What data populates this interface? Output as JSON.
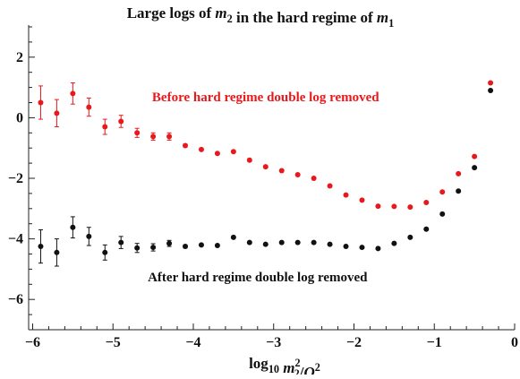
{
  "chart_data": {
    "type": "scatter",
    "title_parts": [
      {
        "text": "Large logs of ",
        "style": "bold"
      },
      {
        "text": "m",
        "style": "bolditalic"
      },
      {
        "text": "2",
        "style": "sub"
      },
      {
        "text": " in the hard regime of ",
        "style": "bold"
      },
      {
        "text": "m",
        "style": "bolditalic"
      },
      {
        "text": "1",
        "style": "sub"
      }
    ],
    "xlabel_parts": [
      {
        "text": "log",
        "style": "bold"
      },
      {
        "text": "10",
        "style": "sub"
      },
      {
        "text": " ",
        "style": "bold"
      },
      {
        "text": "m",
        "style": "bolditalic"
      },
      {
        "text": "2",
        "style": "supsub",
        "sup": "2",
        "sub": "2"
      },
      {
        "text": "/",
        "style": "bold"
      },
      {
        "text": "Q",
        "style": "bolditalic"
      },
      {
        "text": "2",
        "style": "sup"
      }
    ],
    "xlim": [
      -6.05,
      0.0
    ],
    "ylim": [
      -7.0,
      3.0
    ],
    "x_ticks": [
      -6,
      -5,
      -4,
      -3,
      -2,
      -1,
      0
    ],
    "x_tick_labels": [
      "−6",
      "−5",
      "−4",
      "−3",
      "−2",
      "−1",
      "0"
    ],
    "y_ticks": [
      2,
      0,
      -2,
      -4,
      -6
    ],
    "y_tick_labels": [
      "2",
      "0",
      "−2",
      "−4",
      "−6"
    ],
    "series": [
      {
        "name": "Before hard regime double log removed",
        "color": "#e8191c",
        "points": [
          {
            "x": -5.9,
            "y": 0.5,
            "err": 0.55
          },
          {
            "x": -5.7,
            "y": 0.15,
            "err": 0.45
          },
          {
            "x": -5.5,
            "y": 0.8,
            "err": 0.35
          },
          {
            "x": -5.3,
            "y": 0.35,
            "err": 0.3
          },
          {
            "x": -5.1,
            "y": -0.3,
            "err": 0.25
          },
          {
            "x": -4.9,
            "y": -0.12,
            "err": 0.2
          },
          {
            "x": -4.7,
            "y": -0.5,
            "err": 0.15
          },
          {
            "x": -4.5,
            "y": -0.62,
            "err": 0.12
          },
          {
            "x": -4.3,
            "y": -0.62,
            "err": 0.12
          },
          {
            "x": -4.1,
            "y": -0.92,
            "err": 0.05
          },
          {
            "x": -3.9,
            "y": -1.05,
            "err": 0
          },
          {
            "x": -3.7,
            "y": -1.18,
            "err": 0
          },
          {
            "x": -3.5,
            "y": -1.12,
            "err": 0
          },
          {
            "x": -3.3,
            "y": -1.4,
            "err": 0
          },
          {
            "x": -3.1,
            "y": -1.62,
            "err": 0
          },
          {
            "x": -2.9,
            "y": -1.75,
            "err": 0
          },
          {
            "x": -2.7,
            "y": -1.88,
            "err": 0
          },
          {
            "x": -2.5,
            "y": -2.0,
            "err": 0
          },
          {
            "x": -2.3,
            "y": -2.25,
            "err": 0
          },
          {
            "x": -2.1,
            "y": -2.55,
            "err": 0
          },
          {
            "x": -1.9,
            "y": -2.72,
            "err": 0
          },
          {
            "x": -1.7,
            "y": -2.92,
            "err": 0
          },
          {
            "x": -1.5,
            "y": -2.93,
            "err": 0
          },
          {
            "x": -1.3,
            "y": -2.95,
            "err": 0
          },
          {
            "x": -1.1,
            "y": -2.8,
            "err": 0
          },
          {
            "x": -0.9,
            "y": -2.45,
            "err": 0
          },
          {
            "x": -0.7,
            "y": -1.85,
            "err": 0
          },
          {
            "x": -0.5,
            "y": -1.28,
            "err": 0
          },
          {
            "x": -0.3,
            "y": 1.15,
            "err": 0
          }
        ]
      },
      {
        "name": "After hard regime double log removed",
        "color": "#111111",
        "points": [
          {
            "x": -5.9,
            "y": -4.25,
            "err": 0.55
          },
          {
            "x": -5.7,
            "y": -4.45,
            "err": 0.45
          },
          {
            "x": -5.5,
            "y": -3.62,
            "err": 0.35
          },
          {
            "x": -5.3,
            "y": -3.92,
            "err": 0.3
          },
          {
            "x": -5.1,
            "y": -4.45,
            "err": 0.25
          },
          {
            "x": -4.9,
            "y": -4.12,
            "err": 0.2
          },
          {
            "x": -4.7,
            "y": -4.3,
            "err": 0.15
          },
          {
            "x": -4.5,
            "y": -4.28,
            "err": 0.12
          },
          {
            "x": -4.3,
            "y": -4.15,
            "err": 0.1
          },
          {
            "x": -4.1,
            "y": -4.25,
            "err": 0.05
          },
          {
            "x": -3.9,
            "y": -4.2,
            "err": 0
          },
          {
            "x": -3.7,
            "y": -4.22,
            "err": 0
          },
          {
            "x": -3.5,
            "y": -3.95,
            "err": 0
          },
          {
            "x": -3.3,
            "y": -4.12,
            "err": 0
          },
          {
            "x": -3.1,
            "y": -4.18,
            "err": 0
          },
          {
            "x": -2.9,
            "y": -4.12,
            "err": 0
          },
          {
            "x": -2.7,
            "y": -4.12,
            "err": 0
          },
          {
            "x": -2.5,
            "y": -4.12,
            "err": 0
          },
          {
            "x": -2.3,
            "y": -4.18,
            "err": 0
          },
          {
            "x": -2.1,
            "y": -4.25,
            "err": 0
          },
          {
            "x": -1.9,
            "y": -4.28,
            "err": 0
          },
          {
            "x": -1.7,
            "y": -4.32,
            "err": 0
          },
          {
            "x": -1.5,
            "y": -4.15,
            "err": 0
          },
          {
            "x": -1.3,
            "y": -3.95,
            "err": 0
          },
          {
            "x": -1.1,
            "y": -3.68,
            "err": 0
          },
          {
            "x": -0.9,
            "y": -3.18,
            "err": 0
          },
          {
            "x": -0.7,
            "y": -2.42,
            "err": 0
          },
          {
            "x": -0.5,
            "y": -1.65,
            "err": 0
          },
          {
            "x": -0.3,
            "y": 0.9,
            "err": 0
          }
        ]
      }
    ],
    "annotations": [
      {
        "text": "Before hard regime double log removed",
        "color": "#e8191c",
        "x": -3.1,
        "y": 0.55
      },
      {
        "text": "After hard regime double log removed",
        "color": "#111111",
        "x": -3.2,
        "y": -5.4
      }
    ],
    "grid": false
  }
}
